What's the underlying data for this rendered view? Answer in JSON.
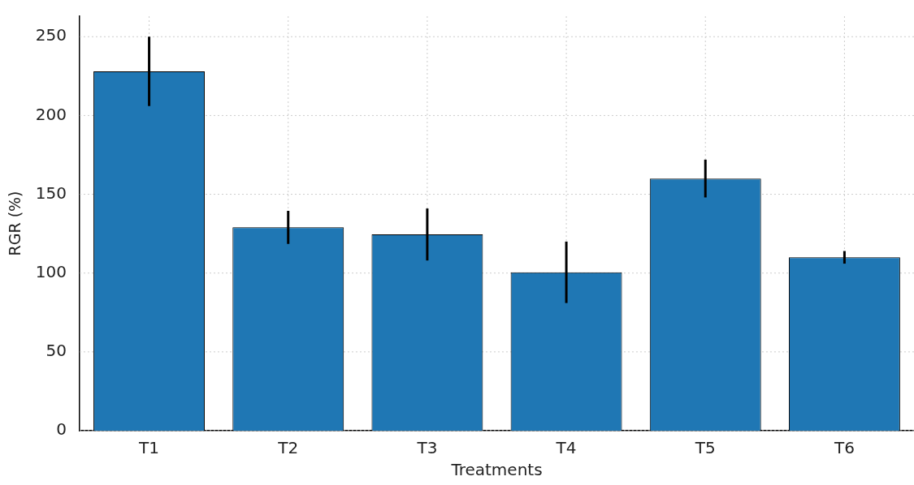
{
  "chart_data": {
    "type": "bar",
    "xlabel": "Treatments",
    "ylabel": "RGR (%)",
    "categories": [
      "T1",
      "T2",
      "T3",
      "T4",
      "T5",
      "T6"
    ],
    "values": [
      228,
      129,
      124.5,
      100.5,
      160,
      110
    ],
    "errors": [
      22,
      10.5,
      16.5,
      19.5,
      12,
      4
    ],
    "color": "#1f77b4",
    "ylim": [
      0,
      263
    ],
    "yticks": [
      0,
      50,
      100,
      150,
      200,
      250
    ],
    "grid": true
  }
}
